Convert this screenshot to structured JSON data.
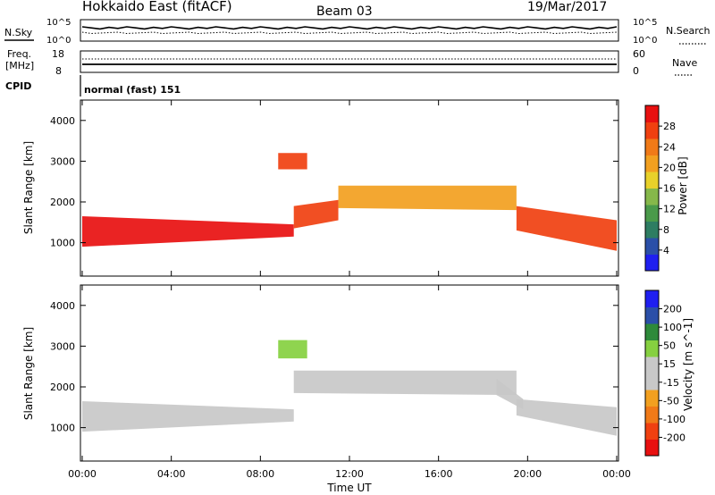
{
  "header": {
    "title": "Hokkaido East (fitACF)",
    "beam": "Beam 03",
    "date": "19/Mar/2017"
  },
  "status_panels": {
    "nsky": {
      "label": "N.Sky",
      "ticks_left": [
        "10^5",
        "10^0"
      ],
      "ticks_right": [
        "10^5",
        "10^0"
      ],
      "legend_label": "N.Search"
    },
    "freq": {
      "label_line1": "Freq.",
      "label_line2": "[MHz]",
      "ticks_left": [
        "18",
        "8"
      ],
      "ticks_right": [
        "60",
        "0"
      ],
      "legend_label": "Nave"
    },
    "cpid": {
      "label": "CPID",
      "value": "normal (fast) 151"
    }
  },
  "x_axis": {
    "label": "Time UT",
    "tick_labels": [
      "00:00",
      "04:00",
      "08:00",
      "12:00",
      "16:00",
      "20:00",
      "00:00"
    ]
  },
  "colors": {
    "power_scale": [
      "#1f1ff0",
      "#2b4fa8",
      "#2e7d62",
      "#4a9a4a",
      "#86b84a",
      "#e8d12a",
      "#f2a020",
      "#f07a18",
      "#f04010",
      "#e81010"
    ],
    "velocity_scale": [
      "#e81010",
      "#f04010",
      "#f07a18",
      "#f2a020",
      "#c8c8c8",
      "#c8c8c8",
      "#86d040",
      "#2e8a3a",
      "#2b4fa8",
      "#1f1ff0"
    ]
  },
  "chart_data": [
    {
      "type": "heatmap",
      "panel": "power",
      "ylabel": "Slant Range [km]",
      "xlabel": "Time UT",
      "xlim": [
        0,
        24
      ],
      "ylim": [
        180,
        4500
      ],
      "y_ticks": [
        "1000",
        "2000",
        "3000",
        "4000"
      ],
      "colorbar": {
        "label": "Power [dB]",
        "ticks": [
          "28",
          "24",
          "20",
          "16",
          "12",
          "8",
          "4"
        ],
        "range": [
          0,
          32
        ]
      },
      "regions": [
        {
          "name": "main band",
          "t": [
            0,
            9.5
          ],
          "r_top": [
            1650,
            1450
          ],
          "r_bot": [
            900,
            1150
          ],
          "value": 29
        },
        {
          "name": "main band late",
          "t": [
            9.5,
            11.5
          ],
          "r_top": [
            1900,
            2050
          ],
          "r_bot": [
            1350,
            1550
          ],
          "value": 27
        },
        {
          "name": "high band",
          "t": [
            11.5,
            19.5
          ],
          "r_top": [
            2400,
            2400
          ],
          "r_bot": [
            1850,
            1800
          ],
          "value": 20
        },
        {
          "name": "evening band",
          "t": [
            19.5,
            24
          ],
          "r_top": [
            1900,
            1550
          ],
          "r_bot": [
            1300,
            800
          ],
          "value": 28
        },
        {
          "name": "patch",
          "t": [
            8.8,
            10.1
          ],
          "r_top": [
            3200,
            3200
          ],
          "r_bot": [
            2800,
            2800
          ],
          "value": 27
        }
      ]
    },
    {
      "type": "heatmap",
      "panel": "velocity",
      "ylabel": "Slant Range [km]",
      "xlabel": "Time UT",
      "xlim": [
        0,
        24
      ],
      "ylim": [
        180,
        4500
      ],
      "y_ticks": [
        "1000",
        "2000",
        "3000",
        "4000"
      ],
      "colorbar": {
        "label": "Velocity [m s^-1]",
        "ticks": [
          "200",
          "100",
          "50",
          "15",
          "-15",
          "-50",
          "-100",
          "-200"
        ],
        "range": [
          -250,
          250
        ]
      },
      "regions": [
        {
          "name": "main band",
          "t": [
            0,
            9.5
          ],
          "r_top": [
            1650,
            1450
          ],
          "r_bot": [
            900,
            1150
          ],
          "value": 0
        },
        {
          "name": "high band",
          "t": [
            9.5,
            19.5
          ],
          "r_top": [
            2400,
            2400
          ],
          "r_bot": [
            1850,
            1800
          ],
          "value": 0
        },
        {
          "name": "green patch",
          "t": [
            8.8,
            10.1
          ],
          "r_top": [
            3150,
            3150
          ],
          "r_bot": [
            2700,
            2700
          ],
          "value": 60
        },
        {
          "name": "green stripe",
          "t": [
            18.6,
            19.8
          ],
          "r_top": [
            2200,
            1700
          ],
          "r_bot": [
            1800,
            1450
          ],
          "value": 40
        },
        {
          "name": "evening band",
          "t": [
            19.5,
            24
          ],
          "r_top": [
            1700,
            1500
          ],
          "r_bot": [
            1300,
            800
          ],
          "value": 0
        }
      ]
    }
  ]
}
